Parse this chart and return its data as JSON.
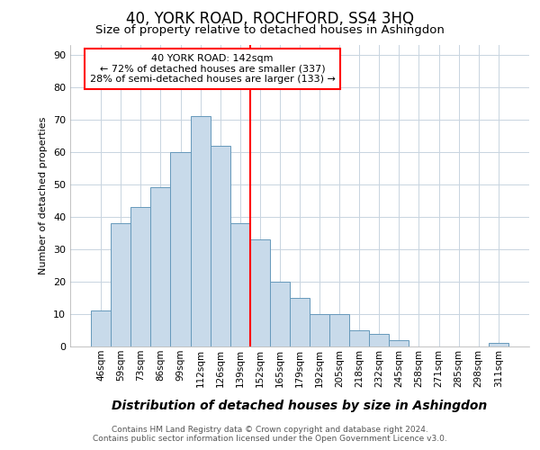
{
  "title": "40, YORK ROAD, ROCHFORD, SS4 3HQ",
  "subtitle": "Size of property relative to detached houses in Ashingdon",
  "xlabel": "Distribution of detached houses by size in Ashingdon",
  "ylabel": "Number of detached properties",
  "bar_labels": [
    "46sqm",
    "59sqm",
    "73sqm",
    "86sqm",
    "99sqm",
    "112sqm",
    "126sqm",
    "139sqm",
    "152sqm",
    "165sqm",
    "179sqm",
    "192sqm",
    "205sqm",
    "218sqm",
    "232sqm",
    "245sqm",
    "258sqm",
    "271sqm",
    "285sqm",
    "298sqm",
    "311sqm"
  ],
  "bar_values": [
    11,
    38,
    43,
    49,
    60,
    71,
    62,
    38,
    33,
    20,
    15,
    10,
    10,
    5,
    4,
    2,
    0,
    0,
    0,
    0,
    1
  ],
  "bar_color": "#c8daea",
  "bar_edge_color": "#6699bb",
  "annotation_text": "40 YORK ROAD: 142sqm\n← 72% of detached houses are smaller (337)\n28% of semi-detached houses are larger (133) →",
  "annotation_box_color": "white",
  "annotation_box_edge_color": "red",
  "ylim": [
    0,
    93
  ],
  "yticks": [
    0,
    10,
    20,
    30,
    40,
    50,
    60,
    70,
    80,
    90
  ],
  "vline_color": "red",
  "vline_x_index": 7,
  "footer_line1": "Contains HM Land Registry data © Crown copyright and database right 2024.",
  "footer_line2": "Contains public sector information licensed under the Open Government Licence v3.0.",
  "bg_color": "white",
  "plot_bg_color": "white",
  "grid_color": "#c8d4e0"
}
